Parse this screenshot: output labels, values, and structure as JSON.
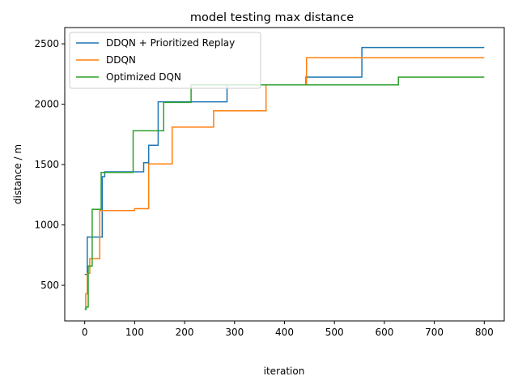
{
  "chart_data": {
    "type": "line",
    "title": "model testing max distance",
    "xlabel": "iteration",
    "ylabel": "distance / m",
    "xlim": [
      -40,
      840
    ],
    "ylim": [
      205,
      2635
    ],
    "xticks": [
      "0",
      "100",
      "200",
      "300",
      "400",
      "500",
      "600",
      "700",
      "800"
    ],
    "yticks": [
      "500",
      "1000",
      "1500",
      "2000",
      "2500"
    ],
    "grid": false,
    "legend_position": "upper-left",
    "series": [
      {
        "name": "DDQN + Prioritized Replay",
        "color": "#1f77b4",
        "steps": [
          [
            0,
            590
          ],
          [
            5,
            590
          ],
          [
            5,
            900
          ],
          [
            12,
            900
          ],
          [
            35,
            900
          ],
          [
            35,
            1400
          ],
          [
            40,
            1400
          ],
          [
            40,
            1440
          ],
          [
            118,
            1440
          ],
          [
            118,
            1515
          ],
          [
            128,
            1515
          ],
          [
            128,
            1660
          ],
          [
            147,
            1660
          ],
          [
            147,
            2020
          ],
          [
            285,
            2020
          ],
          [
            285,
            2160
          ],
          [
            443,
            2160
          ],
          [
            443,
            2225
          ],
          [
            555,
            2225
          ],
          [
            555,
            2470
          ],
          [
            800,
            2470
          ]
        ]
      },
      {
        "name": "DDQN",
        "color": "#ff7f0e",
        "steps": [
          [
            0,
            300
          ],
          [
            2,
            300
          ],
          [
            2,
            430
          ],
          [
            5,
            430
          ],
          [
            5,
            600
          ],
          [
            10,
            600
          ],
          [
            10,
            720
          ],
          [
            30,
            720
          ],
          [
            30,
            1120
          ],
          [
            100,
            1120
          ],
          [
            100,
            1135
          ],
          [
            128,
            1135
          ],
          [
            128,
            1505
          ],
          [
            175,
            1505
          ],
          [
            175,
            1810
          ],
          [
            258,
            1810
          ],
          [
            258,
            1945
          ],
          [
            363,
            1945
          ],
          [
            363,
            2160
          ],
          [
            444,
            2160
          ],
          [
            444,
            2385
          ],
          [
            800,
            2385
          ]
        ]
      },
      {
        "name": "Optimized DQN",
        "color": "#2ca02c",
        "steps": [
          [
            0,
            300
          ],
          [
            3,
            300
          ],
          [
            3,
            320
          ],
          [
            7,
            320
          ],
          [
            7,
            660
          ],
          [
            15,
            660
          ],
          [
            15,
            1130
          ],
          [
            33,
            1130
          ],
          [
            33,
            1435
          ],
          [
            97,
            1435
          ],
          [
            97,
            1780
          ],
          [
            158,
            1780
          ],
          [
            158,
            2015
          ],
          [
            213,
            2015
          ],
          [
            213,
            2160
          ],
          [
            628,
            2160
          ],
          [
            628,
            2225
          ],
          [
            800,
            2225
          ]
        ]
      }
    ]
  }
}
